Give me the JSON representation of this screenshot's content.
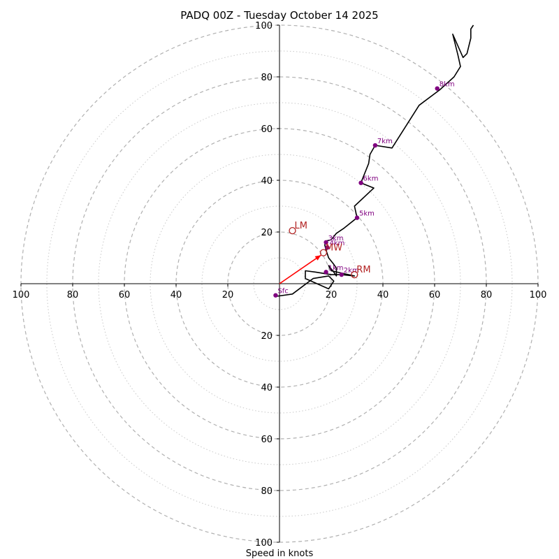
{
  "chart_data": {
    "type": "line",
    "subtype": "hodograph",
    "title": "PADQ 00Z - Tuesday October 14 2025",
    "xlabel": "Speed in knots",
    "units": "knots",
    "range": 100,
    "ring_major_step": 20,
    "ring_minor_step": 10,
    "x_tick_labels": [
      "100",
      "80",
      "60",
      "40",
      "20",
      "20",
      "40",
      "60",
      "80",
      "100"
    ],
    "x_tick_values": [
      -100,
      -80,
      -60,
      -40,
      -20,
      20,
      40,
      60,
      80,
      100
    ],
    "y_tick_labels": [
      "100",
      "80",
      "60",
      "40",
      "20",
      "20",
      "40",
      "60",
      "80",
      "100"
    ],
    "y_tick_values": [
      100,
      80,
      60,
      40,
      20,
      -20,
      -40,
      -60,
      -80,
      -100
    ],
    "colors": {
      "trace": "#000000",
      "height_marker": "#800080",
      "motion": "#b22222",
      "shear_vector": "#ff0000",
      "major_ring": "#b0b0b0",
      "minor_ring": "#c8c8c8",
      "axis": "#000000"
    },
    "series": [
      {
        "name": "wind profile",
        "points": [
          [
            -2,
            -5
          ],
          [
            5,
            -4
          ],
          [
            9,
            -1
          ],
          [
            13,
            2
          ],
          [
            19,
            3
          ],
          [
            21,
            1
          ],
          [
            19,
            -2
          ],
          [
            10,
            2
          ],
          [
            10,
            5
          ],
          [
            14,
            4.5
          ],
          [
            20,
            3.5
          ],
          [
            24,
            3.5
          ],
          [
            29,
            3
          ],
          [
            20,
            5
          ],
          [
            19,
            7
          ],
          [
            21,
            4.5
          ],
          [
            22,
            3
          ],
          [
            22,
            6
          ],
          [
            21,
            7.5
          ],
          [
            19,
            10
          ],
          [
            18,
            13
          ],
          [
            17.5,
            15
          ],
          [
            18,
            16.5
          ],
          [
            20,
            17
          ],
          [
            22,
            19.5
          ],
          [
            25,
            21.5
          ],
          [
            30,
            25.5
          ],
          [
            29,
            30
          ],
          [
            36.5,
            37
          ],
          [
            31.5,
            39
          ],
          [
            34.5,
            46.5
          ],
          [
            35,
            50
          ],
          [
            37,
            53.5
          ],
          [
            43.5,
            52.5
          ],
          [
            54,
            69
          ],
          [
            62,
            75
          ],
          [
            67.5,
            80
          ],
          [
            70,
            84
          ],
          [
            69,
            88.5
          ],
          [
            67,
            96.5
          ],
          [
            71,
            87.5
          ],
          [
            72.5,
            89
          ],
          [
            74,
            95
          ],
          [
            74,
            98.5
          ],
          [
            75,
            100
          ]
        ]
      }
    ],
    "height_markers": [
      {
        "label": "Sfc",
        "u": -1.5,
        "v": -4.5
      },
      {
        "label": "1km",
        "u": 18,
        "v": 4.5
      },
      {
        "label": "2km",
        "u": 24,
        "v": 3.5
      },
      {
        "label": "3km",
        "u": 18,
        "v": 16
      },
      {
        "label": "4km",
        "u": 18.5,
        "v": 14
      },
      {
        "label": "5km",
        "u": 30,
        "v": 25.5
      },
      {
        "label": "6km",
        "u": 31.5,
        "v": 39
      },
      {
        "label": "7km",
        "u": 37,
        "v": 53.5
      },
      {
        "label": "8km",
        "u": 61,
        "v": 75.5
      }
    ],
    "storm_motion": [
      {
        "label": "LM",
        "u": 5,
        "v": 20.5
      },
      {
        "label": "RM",
        "u": 29,
        "v": 3.5
      },
      {
        "label": "MW",
        "u": 17,
        "v": 12
      }
    ],
    "shear_vector": {
      "from": [
        0,
        0
      ],
      "to": [
        16,
        11
      ]
    }
  }
}
